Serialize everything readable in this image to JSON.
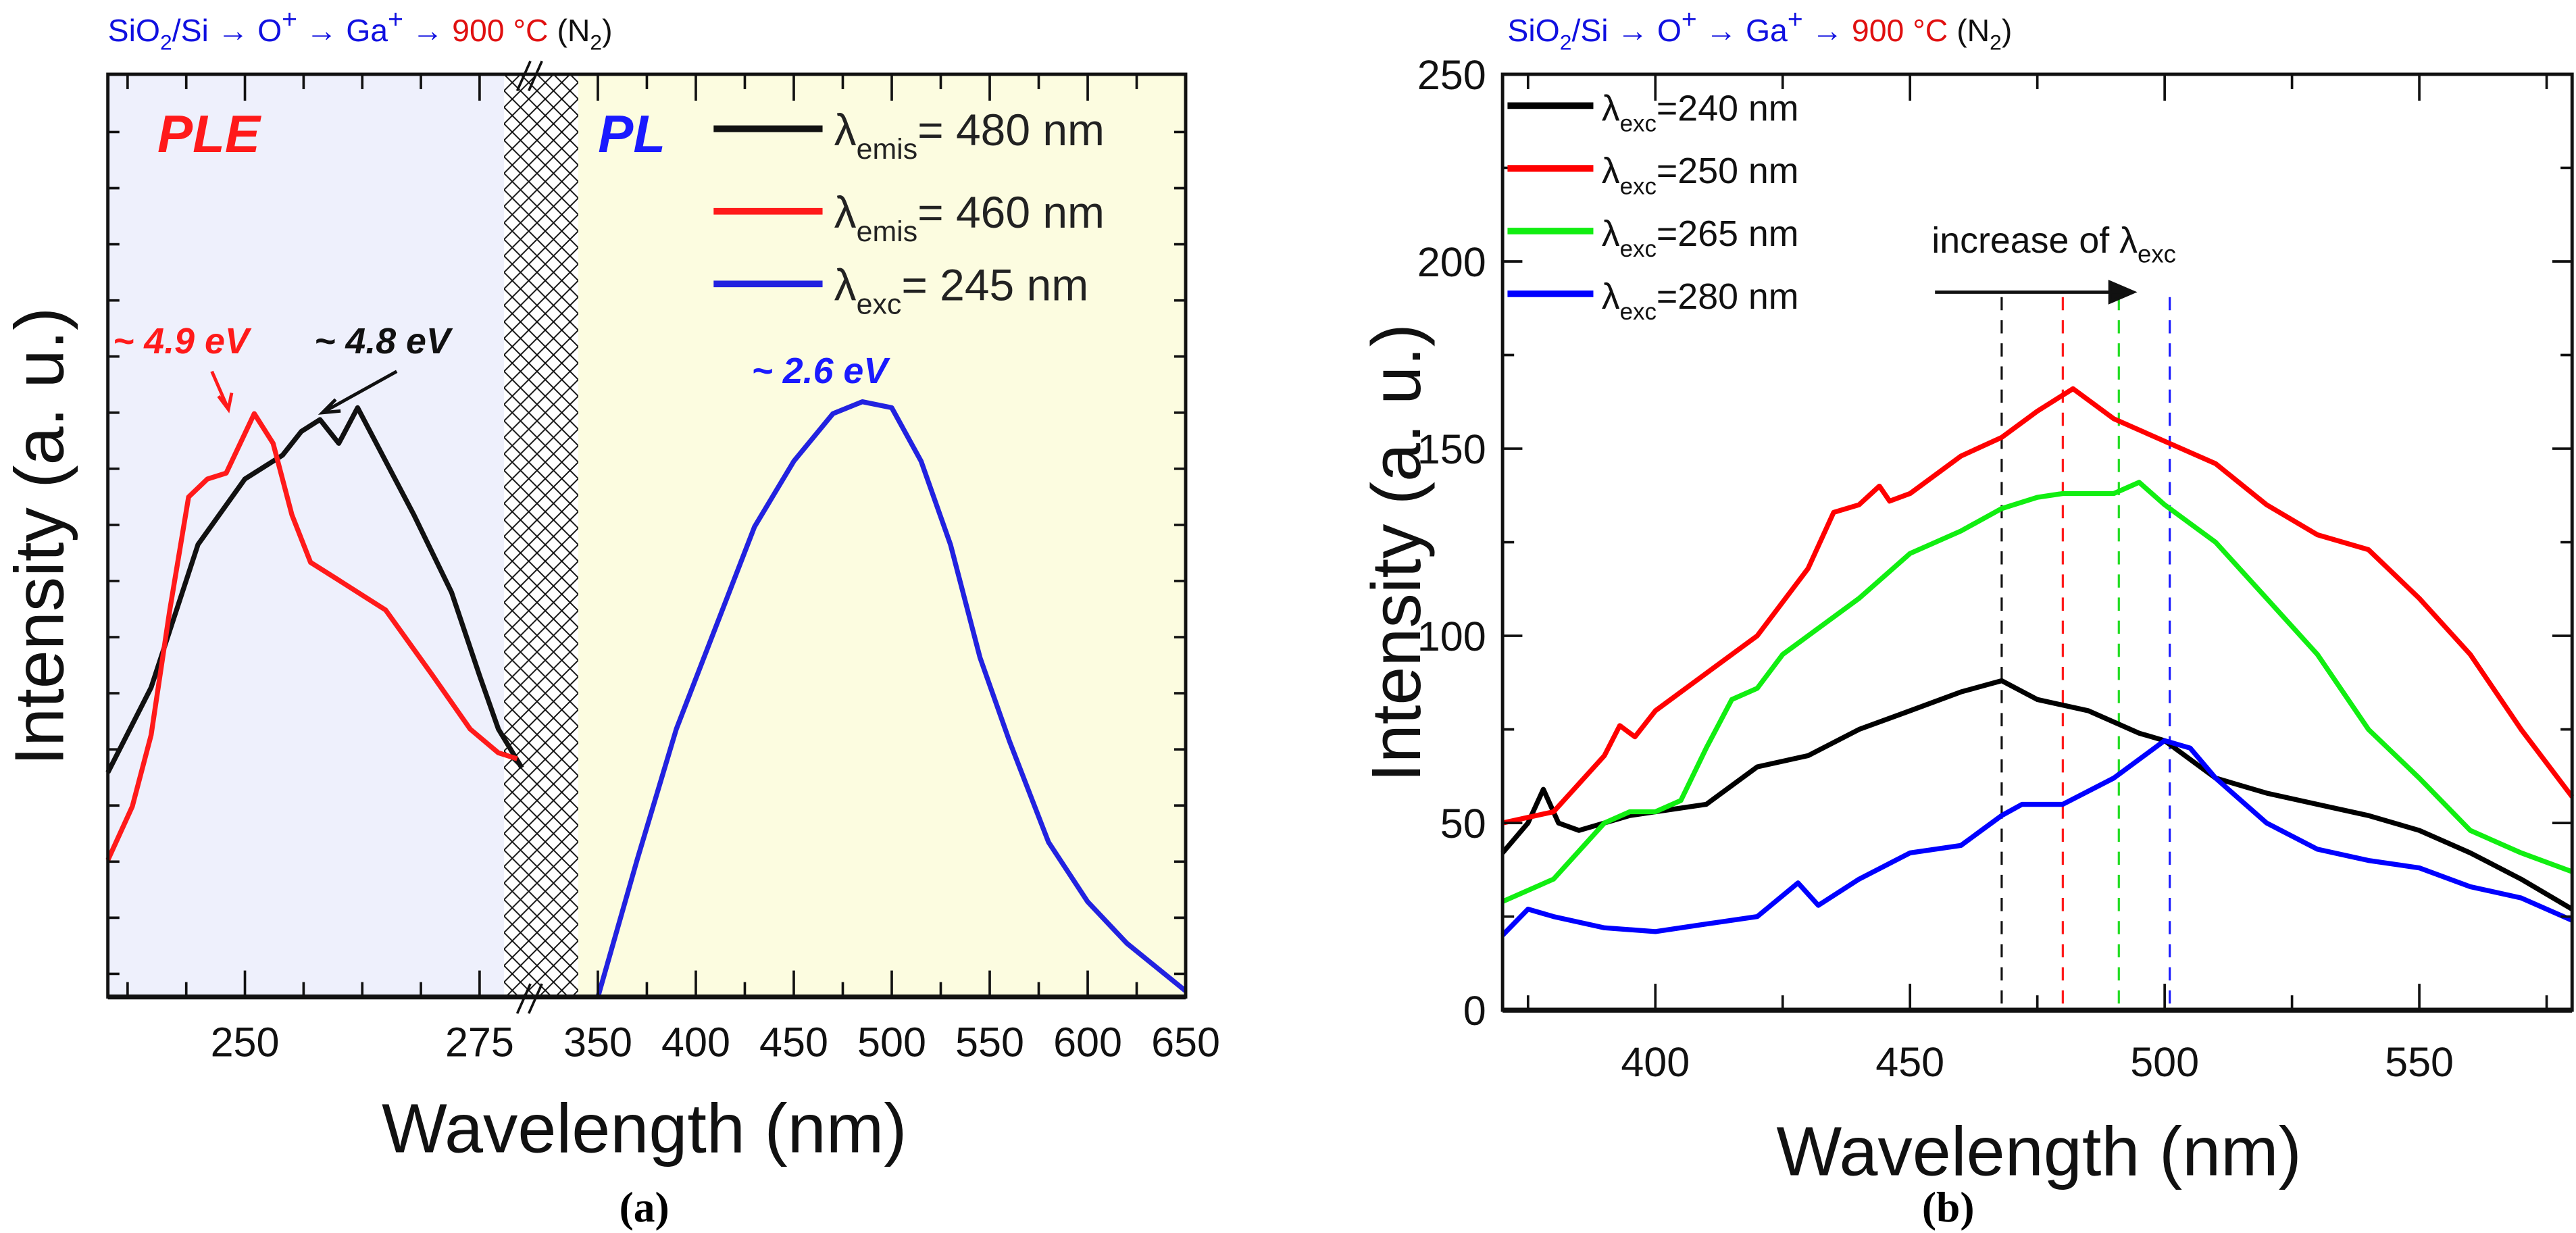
{
  "title_segments": [
    {
      "t": "SiO",
      "c": "#1010e0"
    },
    {
      "t": "2",
      "c": "#1010e0",
      "s": "sub"
    },
    {
      "t": "/Si → ",
      "c": "#1010e0"
    },
    {
      "t": "O",
      "c": "#1010e0"
    },
    {
      "t": "+",
      "c": "#1010e0",
      "s": "sup"
    },
    {
      "t": " → Ga",
      "c": "#1010e0"
    },
    {
      "t": "+",
      "c": "#1010e0",
      "s": "sup"
    },
    {
      "t": " → ",
      "c": "#1010e0"
    },
    {
      "t": "900 °C",
      "c": "#e01010"
    },
    {
      "t": " (N",
      "c": "#111"
    },
    {
      "t": "2",
      "c": "#111",
      "s": "sub"
    },
    {
      "t": ")",
      "c": "#111"
    }
  ],
  "chart_data": [
    {
      "type": "line",
      "panel_label": "(a)",
      "xlabel": "Wavelength (nm)",
      "ylabel": "Intensity (a. u.)",
      "broken_x_axis": true,
      "xlim_left": [
        235.4,
        277.6
      ],
      "xlim_right": [
        340,
        650
      ],
      "xticks_left": [
        250,
        275
      ],
      "xticks_right": [
        350,
        400,
        450,
        500,
        550,
        600,
        650
      ],
      "ylim": [
        0,
        1.55
      ],
      "regions": [
        {
          "label": "PLE",
          "color": "#ff1a1a",
          "bg": "#eef0fc"
        },
        {
          "label": "PL",
          "color": "#1a1aff",
          "bg": "#fcfce0"
        }
      ],
      "annotations": [
        {
          "text": "~ 4.9 eV",
          "color": "#ff1a1a"
        },
        {
          "text": "~ 4.8 eV",
          "color": "#111111"
        },
        {
          "text": "~ 2.6 eV",
          "color": "#1a1aff"
        }
      ],
      "series": [
        {
          "name": "λemis= 480 nm",
          "sym": "λ",
          "sub": "emis",
          "rest": "= 480 nm",
          "color": "#111111",
          "segment": "left",
          "x": [
            235.4,
            240,
            245,
            250,
            252,
            254,
            256,
            258,
            260,
            262,
            265,
            268,
            272,
            275,
            277,
            279.5
          ],
          "y": [
            0.377,
            0.52,
            0.76,
            0.87,
            0.89,
            0.91,
            0.95,
            0.97,
            0.93,
            0.99,
            0.9,
            0.81,
            0.68,
            0.54,
            0.45,
            0.385
          ]
        },
        {
          "name": "λemis= 460 nm",
          "sym": "λ",
          "sub": "emis",
          "rest": "= 460 nm",
          "color": "#ff1a1a",
          "segment": "left",
          "x": [
            235.4,
            238,
            240,
            242,
            244,
            246,
            248,
            251,
            253,
            255,
            257,
            260,
            265,
            270,
            274,
            277,
            279
          ],
          "y": [
            0.23,
            0.32,
            0.44,
            0.65,
            0.84,
            0.87,
            0.88,
            0.98,
            0.93,
            0.81,
            0.73,
            0.7,
            0.65,
            0.54,
            0.45,
            0.41,
            0.4
          ]
        },
        {
          "name": "λexc= 245 nm",
          "sym": "λ",
          "sub": "exc",
          "rest": "= 245 nm",
          "color": "#2222e0",
          "segment": "right",
          "x": [
            350,
            370,
            390,
            410,
            430,
            450,
            470,
            485,
            500,
            515,
            530,
            545,
            560,
            580,
            600,
            620,
            650
          ],
          "y": [
            0,
            0.23,
            0.45,
            0.62,
            0.79,
            0.9,
            0.98,
            1.0,
            0.99,
            0.9,
            0.76,
            0.57,
            0.43,
            0.26,
            0.16,
            0.09,
            0.01
          ]
        }
      ]
    },
    {
      "type": "line",
      "panel_label": "(b)",
      "xlabel": "Wavelength (nm)",
      "ylabel": "Intensity (a. u.)",
      "xlim": [
        370,
        580
      ],
      "ylim": [
        0,
        250
      ],
      "xticks": [
        400,
        450,
        500,
        550
      ],
      "yticks": [
        0,
        50,
        100,
        150,
        200,
        250
      ],
      "annotation": {
        "text": "increase of ",
        "sym": "λ",
        "sub": "exc"
      },
      "vlines": [
        {
          "x": 468,
          "color": "#111111"
        },
        {
          "x": 480,
          "color": "#ff1a1a"
        },
        {
          "x": 491,
          "color": "#22dd22"
        },
        {
          "x": 501,
          "color": "#1a1aff"
        }
      ],
      "series": [
        {
          "name": "λexc=240 nm",
          "sym": "λ",
          "sub": "exc",
          "rest": "=240 nm",
          "color": "#000000",
          "x": [
            370,
            375,
            378,
            381,
            385,
            395,
            410,
            420,
            430,
            440,
            450,
            460,
            468,
            475,
            485,
            495,
            500,
            510,
            520,
            530,
            540,
            550,
            560,
            570,
            580
          ],
          "y": [
            42,
            50,
            59,
            50,
            48,
            52,
            55,
            65,
            68,
            75,
            80,
            85,
            88,
            83,
            80,
            74,
            72,
            62,
            58,
            55,
            52,
            48,
            42,
            35,
            27
          ]
        },
        {
          "name": "λexc=250 nm",
          "sym": "λ",
          "sub": "exc",
          "rest": "=250 nm",
          "color": "#ff0000",
          "x": [
            370,
            380,
            390,
            393,
            396,
            400,
            410,
            420,
            430,
            435,
            440,
            444,
            446,
            450,
            460,
            468,
            475,
            482,
            490,
            500,
            510,
            520,
            530,
            540,
            550,
            560,
            570,
            580
          ],
          "y": [
            50,
            53,
            68,
            76,
            73,
            80,
            90,
            100,
            118,
            133,
            135,
            140,
            136,
            138,
            148,
            153,
            160,
            166,
            158,
            152,
            146,
            135,
            127,
            123,
            110,
            95,
            75,
            57
          ]
        },
        {
          "name": "λexc=265 nm",
          "sym": "λ",
          "sub": "exc",
          "rest": "=265 nm",
          "color": "#11ee11",
          "x": [
            370,
            380,
            390,
            395,
            400,
            405,
            410,
            415,
            420,
            425,
            430,
            440,
            450,
            460,
            468,
            475,
            480,
            490,
            495,
            500,
            510,
            520,
            530,
            540,
            550,
            560,
            570,
            580
          ],
          "y": [
            29,
            35,
            50,
            53,
            53,
            56,
            70,
            83,
            86,
            95,
            100,
            110,
            122,
            128,
            134,
            137,
            138,
            138,
            141,
            135,
            125,
            110,
            95,
            75,
            62,
            48,
            42,
            37
          ]
        },
        {
          "name": "λexc=280 nm",
          "sym": "λ",
          "sub": "exc",
          "rest": "=280 nm",
          "color": "#0000ff",
          "x": [
            370,
            375,
            380,
            390,
            400,
            410,
            420,
            428,
            432,
            440,
            450,
            460,
            468,
            472,
            480,
            490,
            500,
            505,
            510,
            520,
            530,
            540,
            550,
            560,
            570,
            580
          ],
          "y": [
            20,
            27,
            25,
            22,
            21,
            23,
            25,
            34,
            28,
            35,
            42,
            44,
            52,
            55,
            55,
            62,
            72,
            70,
            62,
            50,
            43,
            40,
            38,
            33,
            30,
            24
          ]
        }
      ]
    }
  ]
}
